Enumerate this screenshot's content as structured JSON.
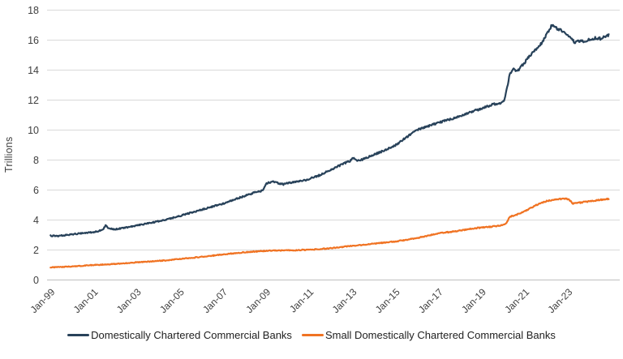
{
  "chart_data": {
    "type": "line",
    "title": "",
    "ylabel": "Trillions",
    "ylim": [
      0,
      18
    ],
    "yticks": [
      0,
      2,
      4,
      6,
      8,
      10,
      12,
      14,
      16,
      18
    ],
    "xlim": [
      1998.8,
      2025.4
    ],
    "grid": "horizontal",
    "legend_position": "bottom",
    "xticks": [
      {
        "year": 1999,
        "label": "Jan-99"
      },
      {
        "year": 2001,
        "label": "Jan-01"
      },
      {
        "year": 2003,
        "label": "Jan-03"
      },
      {
        "year": 2005,
        "label": "Jan-05"
      },
      {
        "year": 2007,
        "label": "Jan-07"
      },
      {
        "year": 2009,
        "label": "Jan-09"
      },
      {
        "year": 2011,
        "label": "Jan-11"
      },
      {
        "year": 2013,
        "label": "Jan-13"
      },
      {
        "year": 2015,
        "label": "Jan-15"
      },
      {
        "year": 2017,
        "label": "Jan-17"
      },
      {
        "year": 2019,
        "label": "Jan-19"
      },
      {
        "year": 2021,
        "label": "Jan-21"
      },
      {
        "year": 2023,
        "label": "Jan-23"
      }
    ],
    "series": [
      {
        "name": "Domestically Chartered Commercial Banks",
        "color": "#28425a",
        "points": [
          [
            1999.0,
            2.95
          ],
          [
            1999.3,
            2.93
          ],
          [
            1999.6,
            2.98
          ],
          [
            2000.0,
            3.05
          ],
          [
            2000.5,
            3.12
          ],
          [
            2001.0,
            3.2
          ],
          [
            2001.4,
            3.32
          ],
          [
            2001.55,
            3.64
          ],
          [
            2001.7,
            3.45
          ],
          [
            2002.0,
            3.38
          ],
          [
            2002.5,
            3.5
          ],
          [
            2003.0,
            3.64
          ],
          [
            2003.5,
            3.77
          ],
          [
            2004.0,
            3.91
          ],
          [
            2004.5,
            4.08
          ],
          [
            2005.0,
            4.27
          ],
          [
            2005.5,
            4.48
          ],
          [
            2006.0,
            4.69
          ],
          [
            2006.5,
            4.9
          ],
          [
            2007.0,
            5.09
          ],
          [
            2007.5,
            5.35
          ],
          [
            2008.0,
            5.6
          ],
          [
            2008.5,
            5.85
          ],
          [
            2008.85,
            5.97
          ],
          [
            2009.0,
            6.45
          ],
          [
            2009.3,
            6.55
          ],
          [
            2009.8,
            6.38
          ],
          [
            2010.0,
            6.45
          ],
          [
            2010.3,
            6.55
          ],
          [
            2010.8,
            6.64
          ],
          [
            2011.0,
            6.75
          ],
          [
            2011.5,
            7.0
          ],
          [
            2012.0,
            7.35
          ],
          [
            2012.5,
            7.7
          ],
          [
            2012.9,
            7.95
          ],
          [
            2013.05,
            8.15
          ],
          [
            2013.25,
            7.95
          ],
          [
            2013.5,
            8.05
          ],
          [
            2014.0,
            8.35
          ],
          [
            2014.5,
            8.65
          ],
          [
            2015.0,
            9.0
          ],
          [
            2015.5,
            9.5
          ],
          [
            2016.0,
            10.0
          ],
          [
            2016.5,
            10.25
          ],
          [
            2017.0,
            10.5
          ],
          [
            2017.5,
            10.7
          ],
          [
            2018.0,
            10.9
          ],
          [
            2018.5,
            11.2
          ],
          [
            2019.0,
            11.45
          ],
          [
            2019.5,
            11.7
          ],
          [
            2019.9,
            11.8
          ],
          [
            2020.05,
            11.95
          ],
          [
            2020.3,
            13.7
          ],
          [
            2020.5,
            14.1
          ],
          [
            2020.65,
            13.9
          ],
          [
            2020.9,
            14.35
          ],
          [
            2021.2,
            14.9
          ],
          [
            2021.5,
            15.35
          ],
          [
            2021.75,
            15.75
          ],
          [
            2021.9,
            16.1
          ],
          [
            2022.1,
            16.6
          ],
          [
            2022.25,
            17.0
          ],
          [
            2022.4,
            16.85
          ],
          [
            2022.6,
            16.7
          ],
          [
            2022.8,
            16.55
          ],
          [
            2023.0,
            16.35
          ],
          [
            2023.15,
            16.1
          ],
          [
            2023.3,
            15.85
          ],
          [
            2023.5,
            15.95
          ],
          [
            2023.7,
            15.9
          ],
          [
            2023.9,
            16.0
          ],
          [
            2024.1,
            16.05
          ],
          [
            2024.3,
            16.15
          ],
          [
            2024.5,
            16.1
          ],
          [
            2024.7,
            16.2
          ],
          [
            2024.9,
            16.35
          ]
        ]
      },
      {
        "name": "Small Domestically Chartered Commercial Banks",
        "color": "#f07323",
        "points": [
          [
            1999.0,
            0.85
          ],
          [
            1999.5,
            0.87
          ],
          [
            2000.0,
            0.9
          ],
          [
            2000.5,
            0.95
          ],
          [
            2001.0,
            1.0
          ],
          [
            2001.5,
            1.03
          ],
          [
            2002.0,
            1.07
          ],
          [
            2002.5,
            1.12
          ],
          [
            2003.0,
            1.18
          ],
          [
            2003.5,
            1.22
          ],
          [
            2004.0,
            1.27
          ],
          [
            2004.5,
            1.33
          ],
          [
            2005.0,
            1.4
          ],
          [
            2005.5,
            1.47
          ],
          [
            2006.0,
            1.54
          ],
          [
            2006.5,
            1.62
          ],
          [
            2007.0,
            1.71
          ],
          [
            2007.5,
            1.78
          ],
          [
            2008.0,
            1.85
          ],
          [
            2008.5,
            1.9
          ],
          [
            2009.0,
            1.95
          ],
          [
            2009.5,
            1.97
          ],
          [
            2010.0,
            1.97
          ],
          [
            2010.5,
            1.99
          ],
          [
            2011.0,
            2.02
          ],
          [
            2011.5,
            2.06
          ],
          [
            2012.0,
            2.12
          ],
          [
            2012.5,
            2.2
          ],
          [
            2013.0,
            2.28
          ],
          [
            2013.5,
            2.34
          ],
          [
            2014.0,
            2.42
          ],
          [
            2014.5,
            2.5
          ],
          [
            2015.0,
            2.57
          ],
          [
            2015.5,
            2.68
          ],
          [
            2016.0,
            2.8
          ],
          [
            2016.5,
            2.95
          ],
          [
            2017.0,
            3.12
          ],
          [
            2017.5,
            3.2
          ],
          [
            2018.0,
            3.3
          ],
          [
            2018.5,
            3.42
          ],
          [
            2019.0,
            3.5
          ],
          [
            2019.5,
            3.56
          ],
          [
            2019.9,
            3.65
          ],
          [
            2020.1,
            3.72
          ],
          [
            2020.3,
            4.22
          ],
          [
            2020.6,
            4.35
          ],
          [
            2020.85,
            4.5
          ],
          [
            2021.0,
            4.6
          ],
          [
            2021.5,
            4.98
          ],
          [
            2022.0,
            5.27
          ],
          [
            2022.5,
            5.4
          ],
          [
            2022.85,
            5.42
          ],
          [
            2023.05,
            5.38
          ],
          [
            2023.2,
            5.1
          ],
          [
            2023.5,
            5.15
          ],
          [
            2024.0,
            5.25
          ],
          [
            2024.5,
            5.35
          ],
          [
            2024.9,
            5.42
          ]
        ]
      }
    ]
  },
  "style_colors": {
    "gridline": "#d9d9d9",
    "axis_line": "#bfbfbf",
    "tick_label": "#3f3f3f",
    "legend_text": "#212121",
    "background": "#ffffff"
  }
}
